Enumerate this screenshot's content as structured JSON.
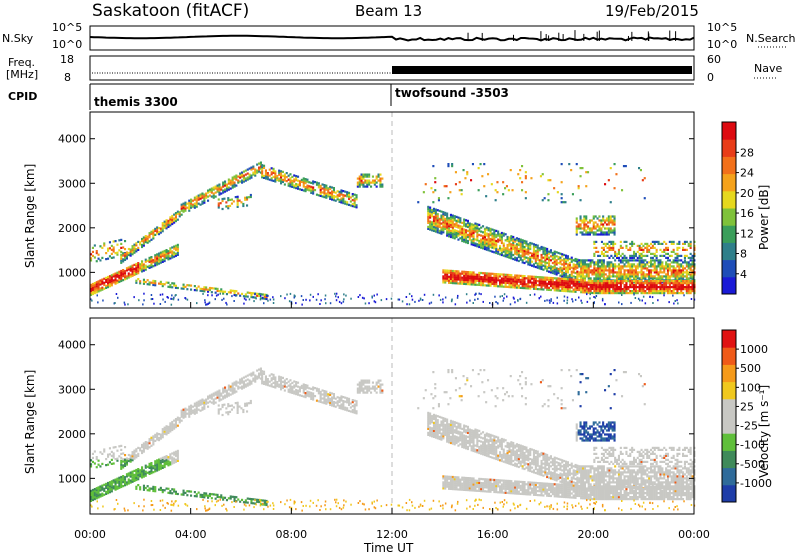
{
  "header": {
    "station": "Saskatoon (fitACF)",
    "beam": "Beam 13",
    "date": "19/Feb/2015"
  },
  "top_panels": {
    "nsky_label": "N.Sky",
    "nsky_ticks": [
      "10^5",
      "10^0"
    ],
    "nsearch_label": "N.Search",
    "nsearch_ticks": [
      "10^5",
      "10^0"
    ],
    "freq_label": "Freq.",
    "freq_unit": "[MHz]",
    "freq_ticks": [
      "18",
      "8"
    ],
    "nave_label": "Nave",
    "nave_ticks": [
      "60",
      "0"
    ],
    "cpid_label": "CPID",
    "cpid_segments": [
      {
        "name": "themis 3300",
        "start_h": 0,
        "end_h": 12
      },
      {
        "name": "twofsound -3503",
        "start_h": 12,
        "end_h": 24
      }
    ]
  },
  "chart_data": [
    {
      "type": "heatmap",
      "name": "power",
      "ylabel": "Slant Range [km]",
      "xlabel": "Time UT",
      "xlim_hours": [
        0,
        24
      ],
      "ylim_km": [
        200,
        4600
      ],
      "y_ticks": [
        1000,
        2000,
        3000,
        4000
      ],
      "colorbar": {
        "label": "Power [dB]",
        "ticks": [
          "4",
          "8",
          "12",
          "16",
          "20",
          "24",
          "28"
        ],
        "range": [
          0,
          30
        ],
        "colors": [
          "#1a1ad6",
          "#1e4db8",
          "#2f7f8a",
          "#3a9e5a",
          "#7fc23a",
          "#e6d81e",
          "#f5a21b",
          "#f2701a",
          "#e83c18",
          "#dd0a10"
        ]
      },
      "midnight_divider_hour": 12
    },
    {
      "type": "heatmap",
      "name": "velocity",
      "ylabel": "Slant Range [km]",
      "xlabel": "Time UT",
      "xlim_hours": [
        0,
        24
      ],
      "ylim_km": [
        200,
        4600
      ],
      "y_ticks": [
        1000,
        2000,
        3000,
        4000
      ],
      "colorbar": {
        "label": "Velocity [m s⁻¹]",
        "ticks": [
          "1000",
          "500",
          "100",
          "25",
          "-25",
          "-100",
          "-500",
          "-1000"
        ],
        "colors": [
          "#1e3da8",
          "#2f6b9a",
          "#3f8a5a",
          "#5fbf3a",
          "#c8c8c4",
          "#c8c8c4",
          "#f0c81e",
          "#f59a1a",
          "#ef5a18",
          "#e01212"
        ]
      }
    }
  ],
  "x_ticks": [
    "00:00",
    "04:00",
    "08:00",
    "12:00",
    "16:00",
    "20:00",
    "00:00"
  ]
}
